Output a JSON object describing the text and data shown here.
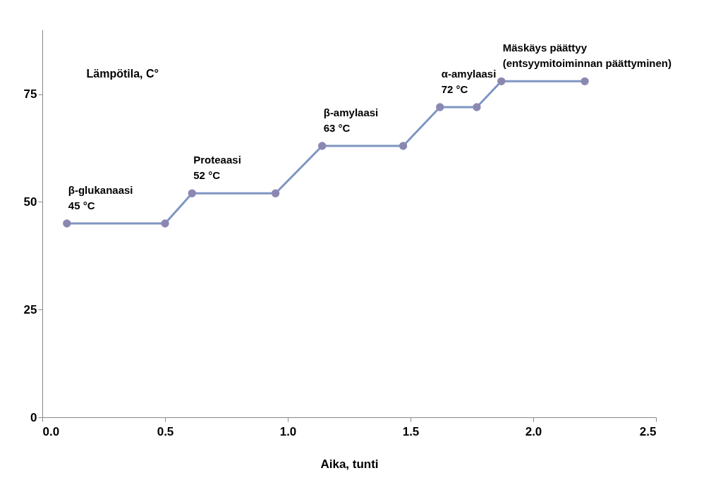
{
  "chart_data": {
    "type": "line",
    "xlabel": "Aika, tunti",
    "ylabel": "Lämpötila, C°",
    "x": [
      0.1,
      0.5,
      0.61,
      0.95,
      1.14,
      1.47,
      1.62,
      1.77,
      1.87,
      2.21
    ],
    "series": [
      {
        "color": "#7f95c2",
        "values": [
          45,
          45,
          52,
          52,
          63,
          63,
          72,
          72,
          78,
          78
        ]
      }
    ],
    "xlim": [
      0,
      2.5
    ],
    "xticks": [
      {
        "value": 0,
        "label": "0.0"
      },
      {
        "value": 0.5,
        "label": "0.5"
      },
      {
        "value": 1,
        "label": "1.0"
      },
      {
        "value": 1.5,
        "label": "1.5"
      },
      {
        "value": 2,
        "label": "2.0"
      },
      {
        "value": 2.5,
        "label": "2.5"
      }
    ],
    "ylim": [
      0,
      90
    ],
    "yticks": [
      0,
      25,
      50,
      75
    ],
    "marker": "circle",
    "grid": false,
    "annotations": [
      {
        "text": "β-glukanaasi\n45 °C",
        "x": 0.1,
        "y": 45
      },
      {
        "text": "Proteaasi\n52 °C",
        "x": 0.61,
        "y": 52
      },
      {
        "text": "β-amylaasi\n63 °C",
        "x": 1.14,
        "y": 63
      },
      {
        "text": "α-amylaasi\n72 °C",
        "x": 1.62,
        "y": 72
      },
      {
        "text": "Mäskäys päättyy\n(entsyymitoiminnan päättyminen)",
        "x": 1.87,
        "y": 78
      }
    ]
  }
}
